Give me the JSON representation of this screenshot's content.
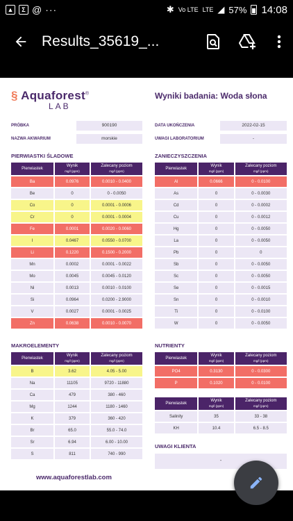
{
  "status": {
    "time": "14:08",
    "battery": "57%",
    "network": "LTE",
    "volte": "Vo LTE"
  },
  "appbar": {
    "title": "Results_35619_..."
  },
  "doc": {
    "logo_main": "Aquaforest",
    "logo_reg": "®",
    "logo_sub": "LAB",
    "title": "Wyniki badania: Woda słona",
    "info_left": [
      {
        "label": "PRÓBKA",
        "value": "900190"
      },
      {
        "label": "NAZWA AKWARIUM",
        "value": "morskie"
      }
    ],
    "info_right": [
      {
        "label": "DATA UKOŃCZENIA",
        "value": "2022-02-15"
      },
      {
        "label": "UWAGI LABORATORIUM",
        "value": "-"
      }
    ],
    "headers": {
      "col1": "Pierwiastek",
      "col2": "Wynik",
      "col2_sub": "mg/l (ppm)",
      "col3": "Zalecany poziom",
      "col3_sub": "mg/l (ppm)"
    },
    "trace": {
      "title": "PIERWIASTKI ŚLADOWE",
      "rows": [
        {
          "el": "Ba",
          "val": "0.0976",
          "rec": "0.0010 - 0.0400",
          "status": "red"
        },
        {
          "el": "Be",
          "val": "0",
          "rec": "0 - 0.0050",
          "status": ""
        },
        {
          "el": "Co",
          "val": "0",
          "rec": "0.0001 - 0.0006",
          "status": "yel"
        },
        {
          "el": "Cr",
          "val": "0",
          "rec": "0.0001 - 0.0004",
          "status": "yel"
        },
        {
          "el": "Fe",
          "val": "0.0001",
          "rec": "0.0020 - 0.0060",
          "status": "red"
        },
        {
          "el": "I",
          "val": "0.0467",
          "rec": "0.0550 - 0.0700",
          "status": "yel"
        },
        {
          "el": "Li",
          "val": "0.1220",
          "rec": "0.1500 - 0.2000",
          "status": "red"
        },
        {
          "el": "Mn",
          "val": "0.0002",
          "rec": "0.0001 - 0.0022",
          "status": ""
        },
        {
          "el": "Mo",
          "val": "0.0045",
          "rec": "0.0045 - 0.0120",
          "status": ""
        },
        {
          "el": "Ni",
          "val": "0.0013",
          "rec": "0.0010 - 0.0100",
          "status": ""
        },
        {
          "el": "Si",
          "val": "0.0964",
          "rec": "0.0200 - 2.9000",
          "status": ""
        },
        {
          "el": "V",
          "val": "0.0027",
          "rec": "0.0001 - 0.0025",
          "status": ""
        },
        {
          "el": "Zn",
          "val": "0.0638",
          "rec": "0.0010 - 0.0070",
          "status": "red"
        }
      ]
    },
    "contam": {
      "title": "ZANIECZYSZCZENIA",
      "rows": [
        {
          "el": "Al",
          "val": "0.0666",
          "rec": "0 - 0.0100",
          "status": "red"
        },
        {
          "el": "As",
          "val": "0",
          "rec": "0 - 0.0030",
          "status": ""
        },
        {
          "el": "Cd",
          "val": "0",
          "rec": "0 - 0.0002",
          "status": ""
        },
        {
          "el": "Cu",
          "val": "0",
          "rec": "0 - 0.0012",
          "status": ""
        },
        {
          "el": "Hg",
          "val": "0",
          "rec": "0 - 0.0050",
          "status": ""
        },
        {
          "el": "La",
          "val": "0",
          "rec": "0 - 0.0050",
          "status": ""
        },
        {
          "el": "Pb",
          "val": "0",
          "rec": "0",
          "status": ""
        },
        {
          "el": "Sb",
          "val": "0",
          "rec": "0 - 0.0050",
          "status": ""
        },
        {
          "el": "Sc",
          "val": "0",
          "rec": "0 - 0.0050",
          "status": ""
        },
        {
          "el": "Se",
          "val": "0",
          "rec": "0 - 0.0015",
          "status": ""
        },
        {
          "el": "Sn",
          "val": "0",
          "rec": "0 - 0.0010",
          "status": ""
        },
        {
          "el": "Ti",
          "val": "0",
          "rec": "0 - 0.0100",
          "status": ""
        },
        {
          "el": "W",
          "val": "0",
          "rec": "0 - 0.0050",
          "status": ""
        }
      ]
    },
    "macro": {
      "title": "MAKROELEMENTY",
      "rows": [
        {
          "el": "B",
          "val": "3.62",
          "rec": "4.05 - 5.00",
          "status": "yel"
        },
        {
          "el": "Na",
          "val": "11105",
          "rec": "9720 - 11880",
          "status": ""
        },
        {
          "el": "Ca",
          "val": "479",
          "rec": "380 - 460",
          "status": ""
        },
        {
          "el": "Mg",
          "val": "1244",
          "rec": "1180 - 1460",
          "status": ""
        },
        {
          "el": "K",
          "val": "379",
          "rec": "360 - 420",
          "status": ""
        },
        {
          "el": "Br",
          "val": "65.0",
          "rec": "55.0 - 74.0",
          "status": ""
        },
        {
          "el": "Sr",
          "val": "6.94",
          "rec": "6.00 - 10.00",
          "status": ""
        },
        {
          "el": "S",
          "val": "811",
          "rec": "740 - 990",
          "status": ""
        }
      ]
    },
    "nutrients": {
      "title": "NUTRIENTY",
      "rows": [
        {
          "el": "PO4",
          "val": "0.3130",
          "rec": "0 - 0.0300",
          "status": "red"
        },
        {
          "el": "P",
          "val": "0.1020",
          "rec": "0 - 0.0100",
          "status": "red"
        }
      ]
    },
    "salinity": {
      "rows": [
        {
          "el": "Salinity",
          "val": "35",
          "rec": "33 - 38",
          "status": ""
        },
        {
          "el": "KH",
          "val": "10.4",
          "rec": "6.5 - 8.5",
          "status": ""
        }
      ]
    },
    "client_notes": {
      "title": "UWAGI KLIENTA",
      "value": "-"
    },
    "url": "www.aquaforestlab.com"
  }
}
